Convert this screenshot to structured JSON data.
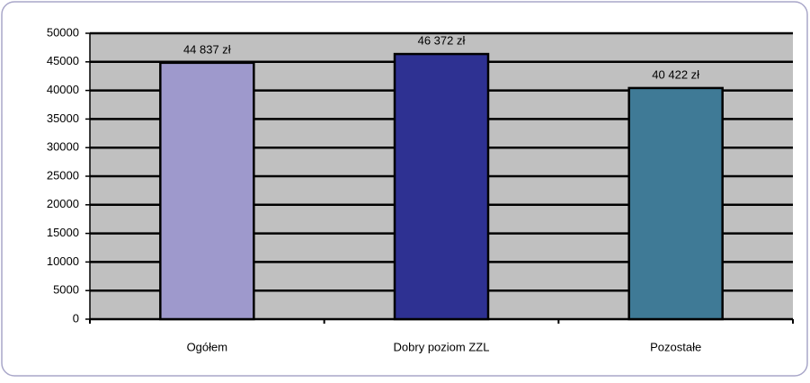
{
  "chart_data": {
    "type": "bar",
    "categories": [
      "Ogółem",
      "Dobry poziom ZZL",
      "Pozostałe"
    ],
    "values": [
      44837,
      46372,
      40422
    ],
    "value_labels": [
      "44 837 zł",
      "46 372 zł",
      "40 422 zł"
    ],
    "colors": [
      "#9e99cc",
      "#2e3192",
      "#3f7a96"
    ],
    "ylim": [
      0,
      50000
    ],
    "yticks": [
      0,
      5000,
      10000,
      15000,
      20000,
      25000,
      30000,
      35000,
      40000,
      45000,
      50000
    ],
    "grid": true
  }
}
